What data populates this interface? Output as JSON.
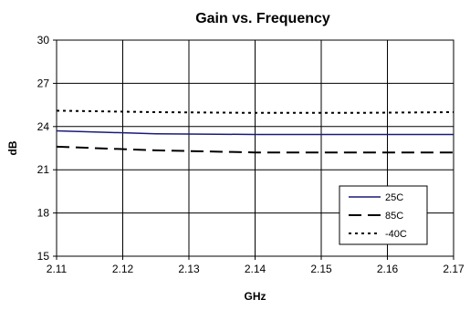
{
  "chart_data": {
    "type": "line",
    "title": "Gain vs. Frequency",
    "xlabel": "GHz",
    "ylabel": "dB",
    "xlim": [
      2.11,
      2.17
    ],
    "ylim": [
      15,
      30
    ],
    "x_ticks": [
      "2.11",
      "2.12",
      "2.13",
      "2.14",
      "2.15",
      "2.16",
      "2.17"
    ],
    "y_ticks": [
      "30",
      "27",
      "24",
      "21",
      "18",
      "15"
    ],
    "grid": true,
    "legend_position": "bottom-right",
    "x": [
      2.11,
      2.125,
      2.14,
      2.155,
      2.17
    ],
    "series": [
      {
        "name": "25C",
        "values": [
          23.7,
          23.5,
          23.45,
          23.45,
          23.45
        ],
        "color": "#1a1a7a",
        "style": "solid"
      },
      {
        "name": "85C",
        "values": [
          22.6,
          22.35,
          22.2,
          22.2,
          22.2
        ],
        "color": "#000000",
        "style": "dashed"
      },
      {
        "name": "-40C",
        "values": [
          25.1,
          25.0,
          24.95,
          24.95,
          25.0
        ],
        "color": "#000000",
        "style": "dotted"
      }
    ]
  }
}
